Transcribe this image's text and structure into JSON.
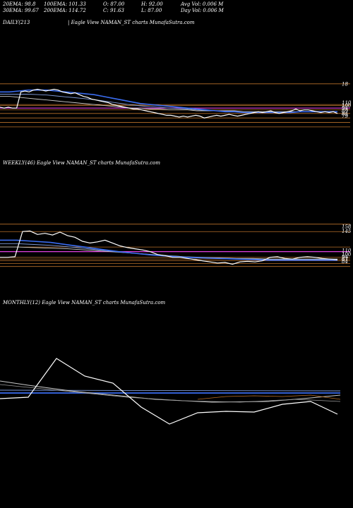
{
  "header": {
    "row1": [
      "20EMA: 98.8",
      "100EMA: 101.33",
      "O: 87.00",
      "H: 92.00",
      "Avg Vol: 0.006  M"
    ],
    "row2": [
      "30EMA: 99.67",
      "200EMA: 114.72",
      "C: 91.63",
      "L: 87.00",
      "Day Vol: 0.006  M"
    ]
  },
  "panels": {
    "daily": {
      "label_left": "DAILY(213",
      "label_right": "| Eagle  View  NAMAN_ST charts MunafaSutra.com",
      "right_labels": [
        "18",
        "110",
        "100",
        "94",
        "89",
        "84",
        "79"
      ]
    },
    "weekly": {
      "label": "WEEKLY(46) Eagle  View  NAMAN_ST charts MunafaSutra.com",
      "right_labels": [
        "158",
        "145",
        "110",
        "100",
        "94",
        "87",
        "84"
      ]
    },
    "monthly": {
      "label": "MONTHLY(12) Eagle  View  NAMAN_ST charts MunafaSutra.com"
    }
  },
  "colors": {
    "background": "#000000",
    "price": "#ffffff",
    "ema_fast": "#3a6cf0",
    "ema_mid": "#7f9bd9",
    "ema_slow": "#c8c8c8",
    "support": "#b8702a",
    "magenta": "#e040e0"
  },
  "chart_data": [
    {
      "type": "line",
      "name": "daily",
      "price_range": [
        75,
        130
      ],
      "price": [
        101,
        100,
        101,
        100,
        100,
        118,
        119,
        118,
        120,
        121,
        120,
        119,
        120,
        121,
        120,
        118,
        117,
        116,
        117,
        115,
        113,
        112,
        110,
        109,
        108,
        107,
        106,
        104,
        103,
        102,
        101,
        100,
        99,
        99,
        98,
        97,
        96,
        95,
        94,
        93,
        92,
        92,
        91,
        90,
        91,
        90,
        91,
        92,
        91,
        89,
        90,
        91,
        92,
        91,
        92,
        93,
        92,
        91,
        92,
        93,
        94,
        95,
        96,
        95,
        96,
        97,
        95,
        94,
        95,
        96,
        97,
        99,
        97,
        98,
        98,
        97,
        96,
        95,
        96,
        95,
        96,
        94
      ],
      "ema_fast": [
        118,
        118,
        119,
        120,
        120,
        120,
        119,
        118,
        117,
        116,
        115,
        113,
        111,
        109,
        107,
        105,
        104,
        103,
        102,
        101,
        100,
        99,
        98,
        97,
        96,
        96,
        95,
        95,
        95,
        95,
        95,
        95,
        96,
        96,
        96,
        96,
        96
      ],
      "ema_slow": [
        113,
        113,
        112,
        111,
        110,
        109,
        108,
        107,
        106,
        105,
        104,
        103,
        102,
        101,
        100,
        100,
        99,
        99,
        98,
        98,
        98,
        97,
        97,
        97,
        97,
        97,
        96,
        96,
        96,
        96,
        96,
        96,
        96,
        96,
        96,
        96,
        96
      ],
      "hlines": [
        127,
        104,
        103,
        100,
        98,
        94,
        89,
        84,
        79
      ]
    },
    {
      "type": "line",
      "name": "weekly",
      "price_range": [
        75,
        165
      ],
      "price": [
        100,
        100,
        101,
        145,
        146,
        140,
        142,
        139,
        144,
        138,
        135,
        128,
        125,
        127,
        130,
        125,
        120,
        117,
        115,
        113,
        110,
        105,
        103,
        100,
        100,
        98,
        96,
        94,
        92,
        90,
        91,
        88,
        92,
        93,
        92,
        94,
        100,
        101,
        98,
        97,
        100,
        101,
        100,
        98,
        97,
        96
      ],
      "ema_fast": [
        130,
        130,
        128,
        126,
        122,
        118,
        114,
        110,
        107,
        104,
        102,
        100,
        99,
        98,
        97,
        96,
        95,
        95,
        95,
        95,
        95
      ],
      "ema_slow": [
        118,
        118,
        117,
        116,
        115,
        113,
        111,
        109,
        107,
        105,
        103,
        101,
        100,
        99,
        98,
        98,
        97,
        97,
        97,
        97,
        97
      ],
      "hlines": [
        158,
        145,
        118,
        110,
        100,
        97,
        94,
        89,
        84
      ]
    },
    {
      "type": "line",
      "name": "monthly",
      "price": [
        118,
        120,
        175,
        150,
        140,
        106,
        82,
        98,
        100,
        99,
        110,
        114,
        96
      ]
    }
  ]
}
